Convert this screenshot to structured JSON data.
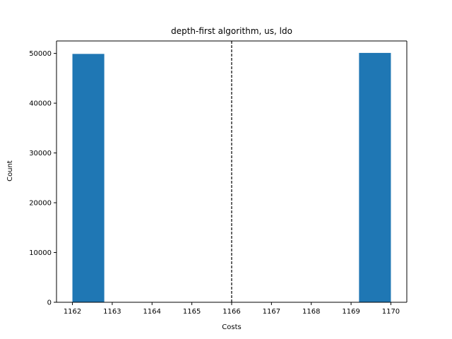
{
  "chart_data": {
    "type": "bar",
    "title": "depth-first algorithm, us, ldo",
    "xlabel": "Costs",
    "ylabel": "Count",
    "xlim": [
      1161.6,
      1170.4
    ],
    "ylim": [
      0,
      52500
    ],
    "xticks": [
      1162,
      1163,
      1164,
      1165,
      1166,
      1167,
      1168,
      1169,
      1170
    ],
    "yticks": [
      0,
      10000,
      20000,
      30000,
      40000,
      50000
    ],
    "bins": [
      {
        "x0": 1162.0,
        "x1": 1162.8,
        "count": 49900
      },
      {
        "x0": 1162.8,
        "x1": 1163.6,
        "count": 0
      },
      {
        "x0": 1163.6,
        "x1": 1164.4,
        "count": 0
      },
      {
        "x0": 1164.4,
        "x1": 1165.2,
        "count": 0
      },
      {
        "x0": 1165.2,
        "x1": 1166.0,
        "count": 0
      },
      {
        "x0": 1166.0,
        "x1": 1166.8,
        "count": 0
      },
      {
        "x0": 1166.8,
        "x1": 1167.6,
        "count": 0
      },
      {
        "x0": 1167.6,
        "x1": 1168.4,
        "count": 0
      },
      {
        "x0": 1168.4,
        "x1": 1169.2,
        "count": 0
      },
      {
        "x0": 1169.2,
        "x1": 1170.0,
        "count": 50100
      }
    ],
    "vline": {
      "x": 1166.0,
      "style": "dashed",
      "color": "#000000"
    },
    "bar_color": "#1f77b4",
    "grid": false,
    "legend": "none"
  }
}
